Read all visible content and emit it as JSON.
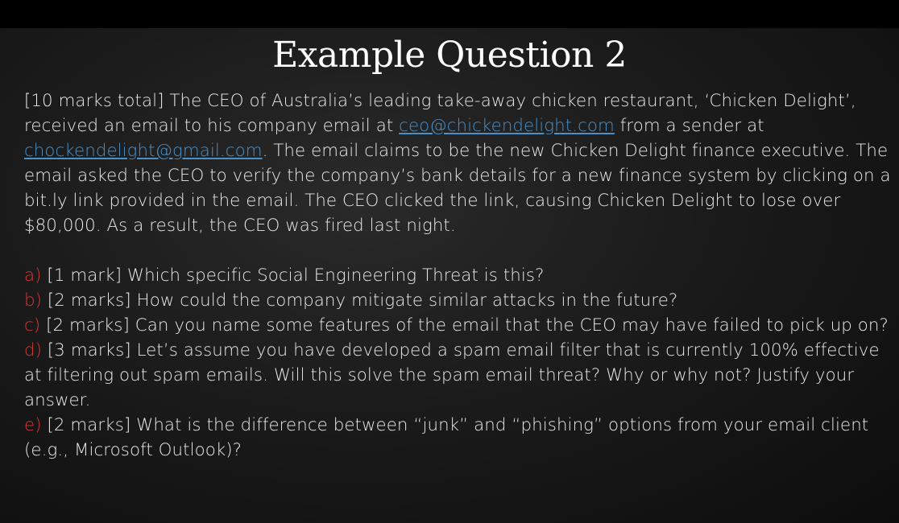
{
  "slide": {
    "title": "Example Question 2",
    "intro": {
      "part1": "[10 marks total] The CEO of Australia’s leading take-away chicken restaurant, ‘Chicken Delight’, received an email to his company email at ",
      "email1": "ceo@chickendelight.com",
      "part2": " from a sender at ",
      "email2": "chockendelight@gmail.com",
      "part3": ". The email claims to be the new Chicken Delight finance executive. The email asked the CEO to verify the company’s bank details for a new finance system by clicking on a bit.ly link provided in the email. The CEO clicked the link, causing Chicken Delight to lose over $80,000. As a result, the CEO was fired last night."
    },
    "questions": [
      {
        "letter": "a)",
        "text": " [1 mark] Which specific Social Engineering Threat is this?"
      },
      {
        "letter": "b)",
        "text": " [2 marks] How could the company mitigate similar attacks in the future?"
      },
      {
        "letter": "c)",
        "text": " [2 marks] Can you name some features of the email that the CEO may have failed to pick up on?"
      },
      {
        "letter": "d)",
        "text": " [3 marks] Let’s assume you have developed a spam email filter that is currently 100% effective at filtering out spam emails. Will this solve the spam email threat? Why or why not? Justify your answer."
      },
      {
        "letter": "e)",
        "text": " [2 marks] What is the difference between “junk” and “phishing” options from your email client (e.g., Microsoft Outlook)?"
      }
    ]
  },
  "colors": {
    "background": "#1b1b1b",
    "text": "#e8e8e8",
    "link": "#4a90c8",
    "question_letter": "#d33a3a"
  }
}
